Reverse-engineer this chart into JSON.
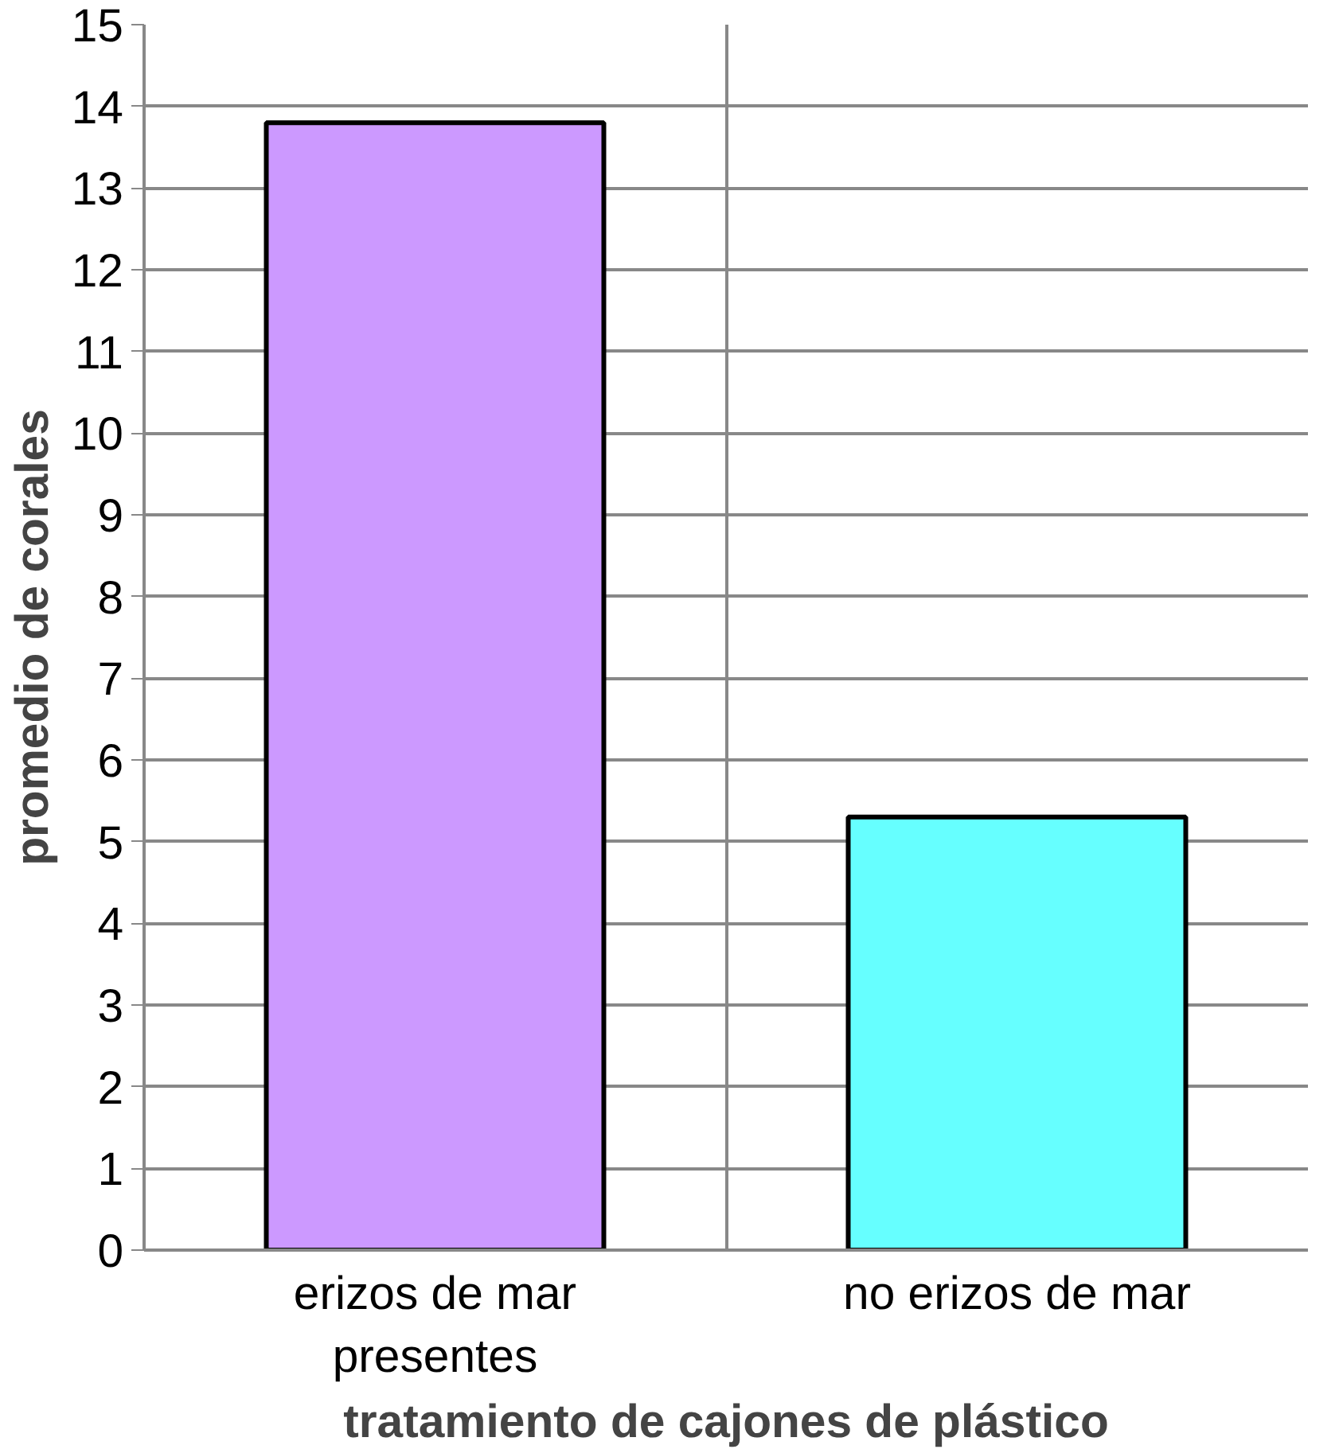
{
  "chart_data": {
    "type": "bar",
    "xlabel": "tratamiento de cajones de plástico",
    "ylabel": "promedio de corales",
    "categories": [
      "erizos de mar presentes",
      "no erizos de mar"
    ],
    "values": [
      13.8,
      5.3
    ],
    "colors": [
      "#cc99ff",
      "#66ffff"
    ],
    "ylim": [
      0,
      15
    ],
    "yticks": [
      0,
      1,
      2,
      3,
      4,
      5,
      6,
      7,
      8,
      9,
      10,
      11,
      12,
      13,
      14,
      15
    ],
    "grid": true
  }
}
